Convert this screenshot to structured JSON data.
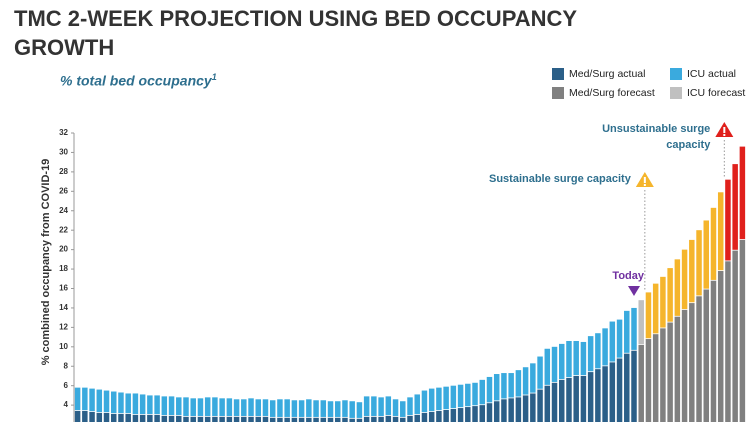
{
  "chart_data": {
    "type": "stacked_bar",
    "title": "TMC 2-WEEK PROJECTION USING BED OCCUPANCY GROWTH",
    "subtitle": "% total bed occupancy",
    "subtitle_note": "1",
    "y_label": "% combined occupancy from COVID-19",
    "ylim": [
      0,
      32
    ],
    "yticks": [
      4,
      6,
      8,
      10,
      12,
      14,
      16,
      18,
      20,
      22,
      24,
      26,
      28,
      30,
      32
    ],
    "categories": [
      null,
      null,
      null,
      null,
      null,
      null,
      null,
      null,
      null,
      null,
      null,
      null,
      null,
      null,
      null,
      null,
      null,
      null,
      null,
      null,
      null,
      null,
      null,
      null,
      null,
      null,
      null,
      null,
      null,
      null,
      null,
      null,
      null,
      null,
      null,
      null,
      null,
      null,
      null,
      null,
      null,
      null,
      null,
      null,
      null,
      null,
      null,
      null,
      null,
      null,
      null,
      null,
      null,
      null,
      null,
      null,
      null,
      null,
      null,
      null,
      null,
      null,
      null,
      null,
      null,
      null,
      null,
      null,
      null,
      null,
      null,
      null,
      null,
      null,
      null,
      null,
      null,
      null,
      null,
      null,
      null,
      null,
      null,
      null,
      null,
      null,
      null,
      null,
      null,
      null,
      null,
      null,
      null
    ],
    "series": [
      {
        "name": "Med/Surg actual",
        "color": "#2b5f88",
        "values": [
          3.4,
          3.4,
          3.3,
          3.2,
          3.2,
          3.1,
          3.1,
          3.1,
          3.0,
          3.0,
          3.0,
          3.0,
          2.9,
          2.9,
          2.9,
          2.8,
          2.8,
          2.8,
          2.8,
          2.8,
          2.8,
          2.8,
          2.8,
          2.8,
          2.8,
          2.8,
          2.8,
          2.7,
          2.7,
          2.7,
          2.7,
          2.7,
          2.7,
          2.7,
          2.7,
          2.7,
          2.7,
          2.7,
          2.6,
          2.6,
          2.8,
          2.8,
          2.8,
          2.9,
          2.8,
          2.7,
          2.9,
          3.0,
          3.2,
          3.3,
          3.4,
          3.5,
          3.6,
          3.7,
          3.8,
          3.9,
          4.0,
          4.2,
          4.4,
          4.6,
          4.7,
          4.8,
          5.0,
          5.2,
          5.6,
          6.0,
          6.3,
          6.6,
          6.8,
          7.0,
          7.0,
          7.4,
          7.7,
          8.0,
          8.4,
          8.8,
          9.3,
          9.6,
          null,
          null,
          null,
          null,
          null,
          null,
          null,
          null,
          null,
          null,
          null,
          null,
          null,
          null,
          null
        ]
      },
      {
        "name": "ICU actual",
        "color": "#3aaade",
        "values": [
          2.4,
          2.4,
          2.4,
          2.4,
          2.3,
          2.3,
          2.2,
          2.1,
          2.2,
          2.1,
          2.0,
          2.0,
          2.0,
          2.0,
          1.9,
          2.0,
          1.9,
          1.9,
          2.0,
          2.0,
          1.9,
          1.9,
          1.8,
          1.8,
          1.9,
          1.8,
          1.8,
          1.8,
          1.9,
          1.9,
          1.8,
          1.8,
          1.9,
          1.8,
          1.8,
          1.7,
          1.7,
          1.8,
          1.8,
          1.7,
          2.1,
          2.1,
          2.0,
          2.0,
          1.8,
          1.7,
          1.9,
          2.1,
          2.3,
          2.4,
          2.4,
          2.4,
          2.4,
          2.4,
          2.4,
          2.4,
          2.6,
          2.7,
          2.8,
          2.7,
          2.6,
          2.8,
          2.9,
          3.1,
          3.4,
          3.8,
          3.7,
          3.7,
          3.8,
          3.6,
          3.5,
          3.7,
          3.7,
          3.9,
          4.2,
          4.0,
          4.4,
          4.4,
          null,
          null,
          null,
          null,
          null,
          null,
          null,
          null,
          null,
          null,
          null,
          null,
          null,
          null,
          null
        ]
      },
      {
        "name": "Med/Surg forecast",
        "color": "#808080",
        "values": [
          null,
          null,
          null,
          null,
          null,
          null,
          null,
          null,
          null,
          null,
          null,
          null,
          null,
          null,
          null,
          null,
          null,
          null,
          null,
          null,
          null,
          null,
          null,
          null,
          null,
          null,
          null,
          null,
          null,
          null,
          null,
          null,
          null,
          null,
          null,
          null,
          null,
          null,
          null,
          null,
          null,
          null,
          null,
          null,
          null,
          null,
          null,
          null,
          null,
          null,
          null,
          null,
          null,
          null,
          null,
          null,
          null,
          null,
          null,
          null,
          null,
          null,
          null,
          null,
          null,
          null,
          null,
          null,
          null,
          null,
          null,
          null,
          null,
          null,
          null,
          null,
          null,
          null,
          10.2,
          10.8,
          11.3,
          11.9,
          12.5,
          13.1,
          13.8,
          14.5,
          15.2,
          15.9,
          16.8,
          17.8,
          18.8,
          19.9,
          21.0
        ]
      },
      {
        "name": "ICU forecast",
        "color": "#c0c0c0",
        "values": [
          null,
          null,
          null,
          null,
          null,
          null,
          null,
          null,
          null,
          null,
          null,
          null,
          null,
          null,
          null,
          null,
          null,
          null,
          null,
          null,
          null,
          null,
          null,
          null,
          null,
          null,
          null,
          null,
          null,
          null,
          null,
          null,
          null,
          null,
          null,
          null,
          null,
          null,
          null,
          null,
          null,
          null,
          null,
          null,
          null,
          null,
          null,
          null,
          null,
          null,
          null,
          null,
          null,
          null,
          null,
          null,
          null,
          null,
          null,
          null,
          null,
          null,
          null,
          null,
          null,
          null,
          null,
          null,
          null,
          null,
          null,
          null,
          null,
          null,
          null,
          null,
          null,
          null,
          4.6,
          4.8,
          5.2,
          5.3,
          5.6,
          5.9,
          6.2,
          6.5,
          6.8,
          7.1,
          7.5,
          8.1,
          8.4,
          8.9,
          9.6
        ]
      }
    ],
    "today": {
      "text": "Today",
      "x": 77,
      "color": "#7030a0"
    },
    "surge_levels": [
      {
        "text": "Sustainable surge capacity",
        "x": 79,
        "color": "#f5b52c"
      },
      {
        "text": "Unsustainable surge capacity",
        "x": 90,
        "color": "#e0201c"
      }
    ]
  }
}
